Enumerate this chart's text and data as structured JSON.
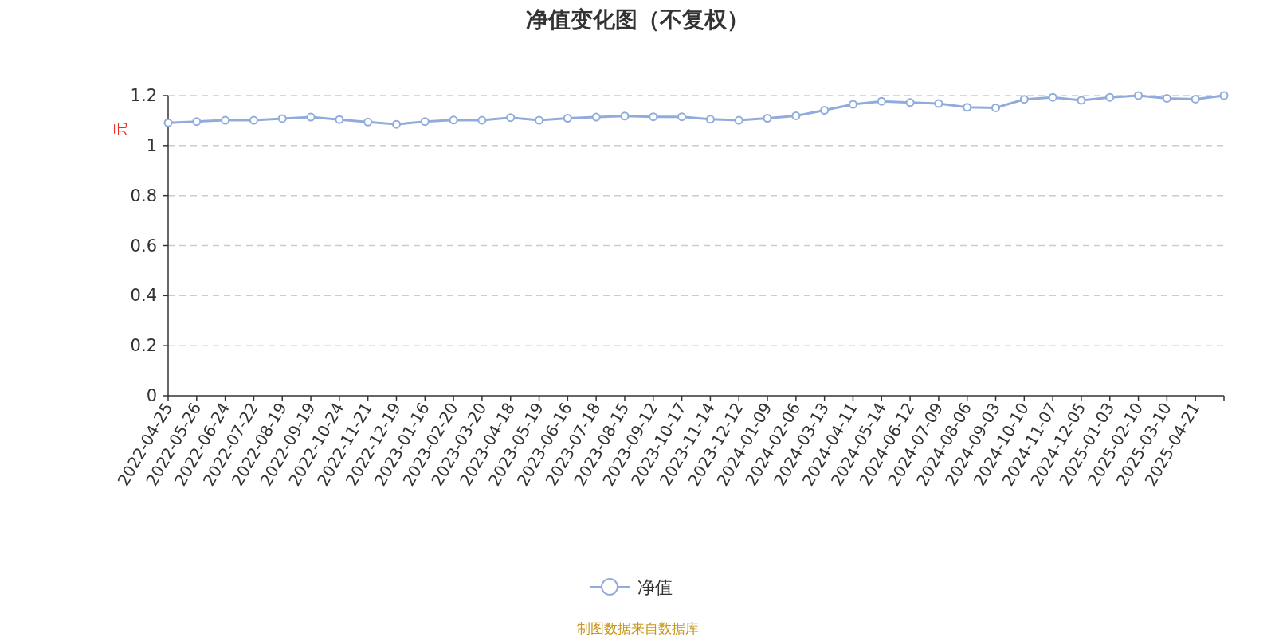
{
  "chart_data": {
    "type": "line",
    "title": "净值变化图（不复权）",
    "ylabel": "元",
    "categories": [
      "2022-04-25",
      "2022-05-26",
      "2022-06-24",
      "2022-07-22",
      "2022-08-19",
      "2022-09-19",
      "2022-10-24",
      "2022-11-21",
      "2022-12-19",
      "2023-01-16",
      "2023-02-20",
      "2023-03-20",
      "2023-04-18",
      "2023-05-19",
      "2023-06-16",
      "2023-07-18",
      "2023-08-15",
      "2023-09-12",
      "2023-10-17",
      "2023-11-14",
      "2023-12-12",
      "2024-01-09",
      "2024-02-06",
      "2024-03-13",
      "2024-04-11",
      "2024-05-14",
      "2024-06-12",
      "2024-07-09",
      "2024-08-06",
      "2024-09-03",
      "2024-10-10",
      "2024-11-07",
      "2024-12-05",
      "2025-01-03",
      "2025-02-10",
      "2025-03-10",
      "2025-04-21",
      null
    ],
    "series": [
      {
        "name": "净值",
        "color": "#91acdc",
        "values": [
          1.091,
          1.096,
          1.101,
          1.101,
          1.108,
          1.114,
          1.104,
          1.094,
          1.085,
          1.096,
          1.102,
          1.101,
          1.112,
          1.101,
          1.109,
          1.114,
          1.118,
          1.115,
          1.115,
          1.105,
          1.101,
          1.109,
          1.119,
          1.141,
          1.165,
          1.177,
          1.172,
          1.168,
          1.153,
          1.151,
          1.185,
          1.193,
          1.181,
          1.193,
          1.2,
          1.189,
          1.186,
          1.2
        ]
      }
    ],
    "ylim": [
      0,
      1.2
    ],
    "yticks": [
      0,
      0.2,
      0.4,
      0.6,
      0.8,
      1,
      1.2
    ],
    "grid": "y",
    "legend": "bottom",
    "marker": "circle",
    "line_style": "solid",
    "annotations": [
      "制图数据来自数据库"
    ]
  }
}
